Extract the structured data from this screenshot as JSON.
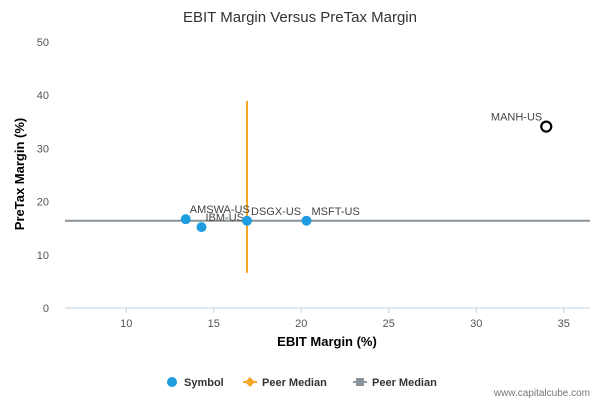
{
  "chart_data": {
    "type": "scatter",
    "title": "EBIT Margin Versus PreTax Margin",
    "xlabel": "EBIT Margin (%)",
    "ylabel": "PreTax Margin (%)",
    "xlim": [
      6.5,
      36.5
    ],
    "ylim": [
      0,
      50
    ],
    "xticks": [
      10,
      15,
      20,
      25,
      30,
      35
    ],
    "yticks": [
      0,
      10,
      20,
      30,
      40,
      50
    ],
    "grid": false,
    "series": [
      {
        "name": "Symbol",
        "color": "#1f9de0",
        "points": [
          {
            "label": "AMSWA-US",
            "x": 13.4,
            "y": 16.7
          },
          {
            "label": "IBM-US",
            "x": 14.3,
            "y": 15.2
          },
          {
            "label": "DSGX-US",
            "x": 16.9,
            "y": 16.4
          },
          {
            "label": "MSFT-US",
            "x": 20.3,
            "y": 16.4
          }
        ]
      },
      {
        "name": "",
        "color": "#000000",
        "hollow": true,
        "points": [
          {
            "label": "MANH-US",
            "x": 34.0,
            "y": 34.1
          }
        ]
      }
    ],
    "peer_median_lines": [
      {
        "name": "Peer Median",
        "orientation": "vertical",
        "x": 16.9,
        "y_range": [
          6.6,
          38.9
        ],
        "color": "#f5a623"
      },
      {
        "name": "Peer Median",
        "orientation": "horizontal",
        "y": 16.4,
        "x_range": [
          6.5,
          36.5
        ],
        "color": "#8a9399"
      }
    ],
    "legend": {
      "position": "bottom",
      "items": [
        {
          "label": "Symbol",
          "marker": "circle",
          "color": "#1f9de0"
        },
        {
          "label": "Peer Median",
          "marker": "diamond-line",
          "color": "#f5a623"
        },
        {
          "label": "Peer Median",
          "marker": "square-line",
          "color": "#8a9399"
        }
      ]
    }
  },
  "watermark": "www.capitalcube.com"
}
